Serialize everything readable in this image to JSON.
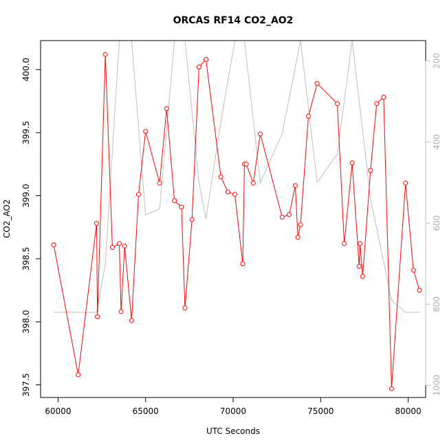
{
  "chart_data": {
    "type": "line",
    "title": "ORCAS RF14 CO2_AO2",
    "xlabel": "UTC Seconds",
    "ylabel": "CO2_AO2",
    "xlim": [
      59000,
      81000
    ],
    "ylim": [
      397.4,
      400.23
    ],
    "y2lim": [
      1030,
      150
    ],
    "x_ticks": [
      60000,
      65000,
      70000,
      75000,
      80000
    ],
    "x_tick_labels": [
      "60000",
      "65000",
      "70000",
      "75000",
      "80000"
    ],
    "y_ticks": [
      397.5,
      398.0,
      398.5,
      399.0,
      399.5,
      400.0
    ],
    "y_tick_labels": [
      "397.5",
      "398.0",
      "398.5",
      "399.0",
      "399.5",
      "400.0"
    ],
    "y2_ticks": [
      200,
      400,
      600,
      800,
      1000
    ],
    "y2_tick_labels": [
      "200",
      "400",
      "600",
      "800",
      "1000"
    ],
    "grid": false,
    "colors": {
      "co2": "#ff0000",
      "secondary": "#bebebe"
    },
    "series": [
      {
        "axis": "left",
        "marker": "open-circle",
        "x": [
          59750,
          61150,
          62200,
          62250,
          62700,
          63100,
          63500,
          63600,
          63800,
          64200,
          64600,
          65000,
          65800,
          66200,
          66650,
          67050,
          67250,
          67650,
          68050,
          68450,
          69300,
          69700,
          70100,
          70550,
          70650,
          70750,
          71150,
          71550,
          72800,
          73200,
          73550,
          73700,
          73850,
          74300,
          74800,
          75950,
          76350,
          76800,
          77200,
          77250,
          77400,
          77850,
          78200,
          78600,
          79050,
          79850,
          80300,
          80650
        ],
        "y": [
          398.61,
          397.58,
          398.78,
          398.04,
          400.12,
          398.59,
          398.62,
          398.08,
          398.6,
          398.01,
          399.01,
          399.51,
          399.1,
          399.69,
          398.96,
          398.91,
          398.11,
          398.81,
          400.02,
          400.08,
          399.15,
          399.03,
          399.01,
          398.46,
          399.25,
          399.25,
          399.1,
          399.49,
          398.83,
          398.85,
          399.08,
          398.67,
          398.77,
          399.63,
          399.89,
          399.73,
          398.62,
          399.26,
          398.44,
          398.62,
          398.36,
          399.2,
          399.73,
          399.78,
          397.47,
          399.1,
          398.41,
          398.25
        ]
      },
      {
        "axis": "right",
        "marker": "none",
        "x": [
          59750,
          62200,
          62700,
          63500,
          64200,
          65000,
          65800,
          66650,
          67250,
          68050,
          68450,
          69300,
          70100,
          70650,
          71550,
          72800,
          73850,
          74800,
          75950,
          76800,
          77850,
          79050,
          79850,
          80650
        ],
        "y": [
          820,
          820,
          700,
          150,
          150,
          580,
          565,
          150,
          150,
          500,
          590,
          350,
          150,
          150,
          500,
          380,
          150,
          500,
          430,
          150,
          540,
          790,
          820,
          820
        ]
      }
    ]
  }
}
